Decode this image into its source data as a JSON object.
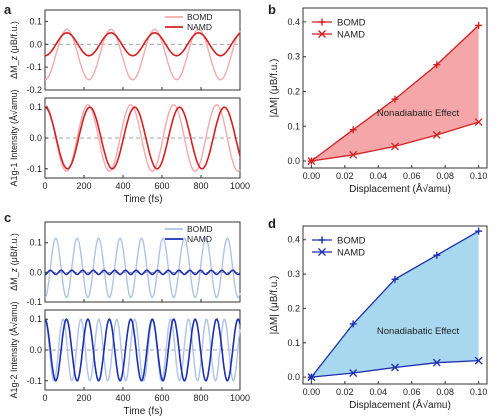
{
  "colors": {
    "red_dark": "#d42020",
    "red_light": "#f5a9ad",
    "red_fill": "#f4a6a8",
    "blue_dark": "#1c2fb0",
    "blue_light": "#aec3ea",
    "blue_fill": "#a8d8f0",
    "axis": "#333333",
    "zero_line": "#888888"
  },
  "panels": {
    "a": {
      "label": "a",
      "top": {
        "ylabel": "ΔM_z (μB/f.u.)",
        "ylim": [
          -0.2,
          0.15
        ],
        "yticks": [
          "0.1",
          "0.0",
          "-0.1",
          "-0.2"
        ]
      },
      "bottom": {
        "ylabel": "A1g-1 Intensity (Å√amu)",
        "ylim": [
          -0.13,
          0.13
        ],
        "yticks": [
          "0.1",
          "0.0",
          "-0.1"
        ]
      },
      "xlabel": "Time (fs)",
      "xticks": [
        "0",
        "200",
        "400",
        "600",
        "800",
        "1000"
      ],
      "legend": [
        "BOMD",
        "NAMD"
      ]
    },
    "b": {
      "label": "b",
      "ylabel": "|ΔM| (μB/f.u.)",
      "xlabel": "Displacement (Å√amu)",
      "xticks": [
        "0.00",
        "0.02",
        "0.04",
        "0.06",
        "0.08",
        "0.10"
      ],
      "yticks": [
        "0.0",
        "0.1",
        "0.2",
        "0.3",
        "0.4"
      ],
      "legend": [
        "BOMD",
        "NAMD"
      ],
      "annotation": "Nonadiabatic  Effect"
    },
    "c": {
      "label": "c",
      "top": {
        "ylabel": "ΔM_z (μB/f.u.)",
        "yticks": [
          "0.1",
          "0.0",
          "-0.1"
        ]
      },
      "bottom": {
        "ylabel": "A1g-2 Intensity (Å√amu)",
        "yticks": [
          "0.1",
          "0.0",
          "-0.1"
        ]
      },
      "xlabel": "Time (fs)",
      "xticks": [
        "0",
        "200",
        "400",
        "600",
        "800",
        "1000"
      ],
      "legend": [
        "BOMD",
        "NAMD"
      ]
    },
    "d": {
      "label": "d",
      "ylabel": "|ΔM| (μB/f.u.)",
      "xlabel": "Displacement (Å√amu)",
      "xticks": [
        "0.00",
        "0.02",
        "0.04",
        "0.06",
        "0.08",
        "0.10"
      ],
      "yticks": [
        "0.0",
        "0.1",
        "0.2",
        "0.3",
        "0.4"
      ],
      "legend": [
        "BOMD",
        "NAMD"
      ],
      "annotation": "Nonadiabatic  Effect"
    }
  },
  "chart_data": [
    {
      "panel": "a-top",
      "type": "line",
      "xlim": [
        0,
        1000
      ],
      "ylim": [
        -0.2,
        0.15
      ],
      "series": [
        {
          "name": "BOMD",
          "kind": "sine",
          "amplitude": 0.11,
          "offset": -0.045,
          "period": 225,
          "phase_x": 0,
          "color": "red_light"
        },
        {
          "name": "NAMD",
          "kind": "sine",
          "amplitude": 0.05,
          "offset": 0.0,
          "period": 225,
          "phase_x": 0,
          "color": "red_dark"
        }
      ]
    },
    {
      "panel": "a-bottom",
      "type": "line",
      "xlim": [
        0,
        1000
      ],
      "ylim": [
        -0.13,
        0.13
      ],
      "series": [
        {
          "name": "BOMD",
          "kind": "cosine",
          "amplitude": 0.108,
          "offset": 0.0,
          "period": 220,
          "color": "red_light"
        },
        {
          "name": "NAMD",
          "kind": "cosine",
          "amplitude": 0.1,
          "offset": 0.0,
          "period": 230,
          "color": "red_dark"
        }
      ]
    },
    {
      "panel": "b",
      "type": "line",
      "xlim": [
        -0.005,
        0.105
      ],
      "ylim": [
        -0.02,
        0.44
      ],
      "series": [
        {
          "name": "BOMD",
          "x": [
            0.0,
            0.025,
            0.05,
            0.075,
            0.1
          ],
          "y": [
            0.0,
            0.09,
            0.178,
            0.277,
            0.39
          ],
          "color": "red_dark"
        },
        {
          "name": "NAMD",
          "x": [
            0.0,
            0.025,
            0.05,
            0.075,
            0.1
          ],
          "y": [
            0.0,
            0.018,
            0.042,
            0.075,
            0.112
          ],
          "color": "red_dark"
        }
      ]
    },
    {
      "panel": "c-top",
      "type": "line",
      "xlim": [
        0,
        1000
      ],
      "ylim": [
        -0.1,
        0.17
      ],
      "series": [
        {
          "name": "BOMD",
          "kind": "sine",
          "amplitude": 0.1,
          "offset": 0.015,
          "period": 110,
          "phase_x": 0,
          "color": "blue_light"
        },
        {
          "name": "NAMD",
          "kind": "sine",
          "amplitude": 0.007,
          "offset": 0.0,
          "period": 55,
          "phase_x": 0,
          "color": "blue_dark"
        }
      ]
    },
    {
      "panel": "c-bottom",
      "type": "line",
      "xlim": [
        0,
        1000
      ],
      "ylim": [
        -0.13,
        0.13
      ],
      "series": [
        {
          "name": "BOMD",
          "kind": "cosine",
          "amplitude": 0.1,
          "offset": 0.0,
          "period": 92,
          "color": "blue_light"
        },
        {
          "name": "NAMD",
          "kind": "cosine",
          "amplitude": 0.1,
          "offset": 0.0,
          "period": 110,
          "color": "blue_dark"
        }
      ]
    },
    {
      "panel": "d",
      "type": "line",
      "xlim": [
        -0.005,
        0.105
      ],
      "ylim": [
        -0.02,
        0.44
      ],
      "series": [
        {
          "name": "BOMD",
          "x": [
            0.0,
            0.025,
            0.05,
            0.075,
            0.1
          ],
          "y": [
            0.0,
            0.155,
            0.285,
            0.355,
            0.425
          ],
          "color": "blue_dark"
        },
        {
          "name": "NAMD",
          "x": [
            0.0,
            0.025,
            0.05,
            0.075,
            0.1
          ],
          "y": [
            0.0,
            0.012,
            0.028,
            0.042,
            0.048
          ],
          "color": "blue_dark"
        }
      ]
    }
  ]
}
